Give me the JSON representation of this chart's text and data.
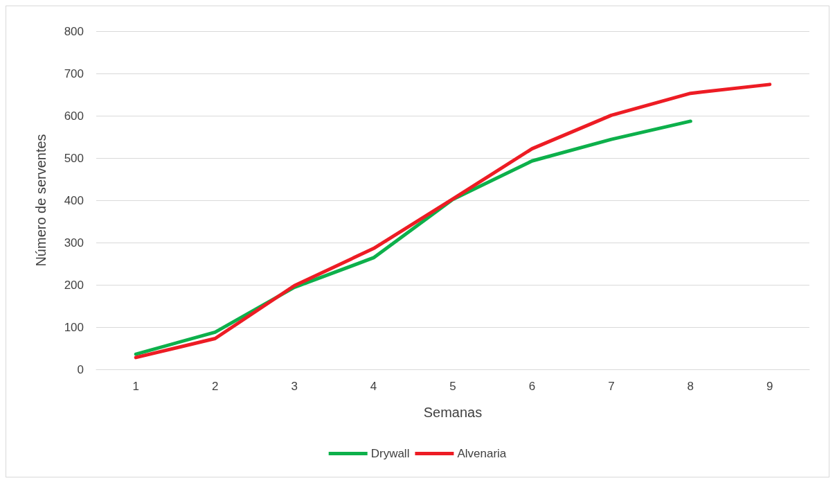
{
  "chart_data": {
    "type": "line",
    "xlabel": "Semanas",
    "ylabel": "Número de serventes",
    "categories": [
      "1",
      "2",
      "3",
      "4",
      "5",
      "6",
      "7",
      "8",
      "9"
    ],
    "series": [
      {
        "name": "Drywall",
        "color": "#0db04b",
        "values": [
          36,
          88,
          194,
          264,
          402,
          493,
          544,
          587,
          null
        ]
      },
      {
        "name": "Alvenaria",
        "color": "#ed1c24",
        "values": [
          28,
          73,
          198,
          286,
          403,
          522,
          601,
          653,
          674
        ]
      }
    ],
    "ylim": [
      0,
      800
    ],
    "yticks": [
      0,
      100,
      200,
      300,
      400,
      500,
      600,
      700,
      800
    ],
    "grid": "y",
    "legend": "bottom",
    "marker": "none",
    "line_style": "solid"
  }
}
